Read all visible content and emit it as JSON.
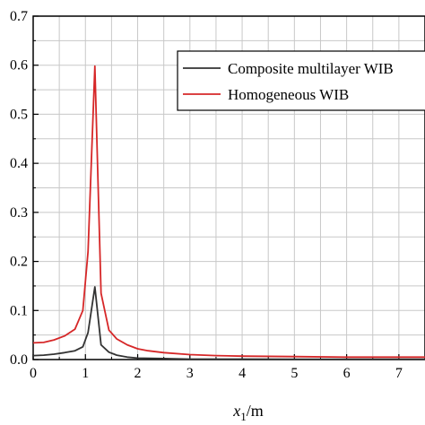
{
  "chart_data": {
    "type": "line",
    "xlabel_main": "x",
    "xlabel_sub": "1",
    "xlabel_unit": "/m",
    "xlim": [
      0,
      7.5
    ],
    "ylim": [
      0,
      0.7
    ],
    "x_ticks": [
      "0",
      "1",
      "2",
      "3",
      "4",
      "5",
      "6",
      "7"
    ],
    "y_ticks": [
      "0.0",
      "0.1",
      "0.2",
      "0.3",
      "0.4",
      "0.5",
      "0.6",
      "0.7"
    ],
    "grid": true,
    "legend_position": "top-right",
    "series": [
      {
        "name": "Composite multilayer WIB",
        "color": "#333333",
        "x": [
          0,
          0.2,
          0.4,
          0.6,
          0.8,
          0.95,
          1.05,
          1.18,
          1.3,
          1.45,
          1.6,
          1.8,
          2.0,
          2.5,
          3.0,
          4.0,
          5.0,
          6.0,
          7.0,
          7.5
        ],
        "y": [
          0.008,
          0.009,
          0.011,
          0.014,
          0.018,
          0.026,
          0.055,
          0.148,
          0.03,
          0.015,
          0.009,
          0.005,
          0.003,
          0.002,
          0.001,
          0.001,
          0.0005,
          0.0005,
          0.0005,
          0.0005
        ]
      },
      {
        "name": "Homogeneous WIB",
        "color": "#d62728",
        "x": [
          0,
          0.2,
          0.4,
          0.6,
          0.8,
          0.95,
          1.05,
          1.18,
          1.3,
          1.45,
          1.6,
          1.8,
          2.0,
          2.2,
          2.5,
          3.0,
          3.5,
          4.0,
          5.0,
          6.0,
          7.0,
          7.5
        ],
        "y": [
          0.034,
          0.035,
          0.04,
          0.048,
          0.062,
          0.1,
          0.22,
          0.598,
          0.135,
          0.06,
          0.042,
          0.03,
          0.022,
          0.018,
          0.014,
          0.01,
          0.008,
          0.007,
          0.006,
          0.005,
          0.005,
          0.005
        ]
      }
    ]
  }
}
